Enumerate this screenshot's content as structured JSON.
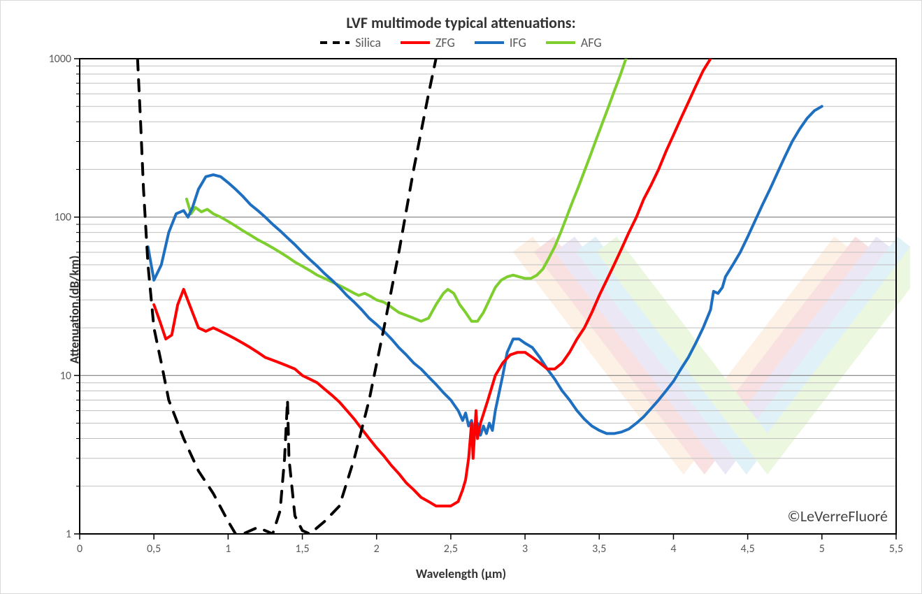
{
  "chart": {
    "type": "line-log",
    "title": "LVF multimode typical attenuations:",
    "title_fontsize": 22,
    "xlabel": "Wavelength (µm)",
    "ylabel": "Attenuation (dB/km)",
    "axis_label_fontsize": 18,
    "tick_fontsize": 16,
    "frame_border_color": "#d9d9d9",
    "background_color": "#ffffff",
    "plot_border_color": "#000000",
    "grid_minor_color": "#bfbfbf",
    "grid_major_color": "#7f7f7f",
    "x": {
      "min": 0,
      "max": 5.5,
      "step": 0.5,
      "decimal_sep": ",",
      "ticks": [
        0,
        0.5,
        1,
        1.5,
        2,
        2.5,
        3,
        3.5,
        4,
        4.5,
        5,
        5.5
      ]
    },
    "y": {
      "type": "log",
      "min": 1,
      "max": 1000,
      "decades": [
        1,
        10,
        100,
        1000
      ]
    },
    "legend": [
      {
        "label": "Silica",
        "color": "#000000",
        "dash": true,
        "width": 4
      },
      {
        "label": "ZFG",
        "color": "#ff0000",
        "dash": false,
        "width": 4
      },
      {
        "label": "IFG",
        "color": "#1f6fc1",
        "dash": false,
        "width": 4
      },
      {
        "label": "AFG",
        "color": "#7fce2f",
        "dash": false,
        "width": 4
      }
    ],
    "series": {
      "Silica": {
        "color": "#000000",
        "dash": true,
        "width": 4,
        "points": [
          [
            0.39,
            1000
          ],
          [
            0.41,
            400
          ],
          [
            0.43,
            150
          ],
          [
            0.46,
            50
          ],
          [
            0.5,
            20
          ],
          [
            0.55,
            12
          ],
          [
            0.6,
            7
          ],
          [
            0.7,
            4
          ],
          [
            0.8,
            2.5
          ],
          [
            0.9,
            1.8
          ],
          [
            1.0,
            1.2
          ],
          [
            1.05,
            1.0
          ],
          [
            1.1,
            1.0
          ],
          [
            1.2,
            1.1
          ],
          [
            1.3,
            1.0
          ],
          [
            1.35,
            1.4
          ],
          [
            1.38,
            3
          ],
          [
            1.4,
            7
          ],
          [
            1.41,
            3
          ],
          [
            1.45,
            1.3
          ],
          [
            1.5,
            1.05
          ],
          [
            1.55,
            1.0
          ],
          [
            1.65,
            1.2
          ],
          [
            1.75,
            1.5
          ],
          [
            1.85,
            3
          ],
          [
            1.95,
            7
          ],
          [
            2.05,
            20
          ],
          [
            2.15,
            60
          ],
          [
            2.25,
            200
          ],
          [
            2.35,
            600
          ],
          [
            2.4,
            1000
          ]
        ]
      },
      "ZFG": {
        "color": "#ff0000",
        "dash": false,
        "width": 4,
        "points": [
          [
            0.5,
            28
          ],
          [
            0.54,
            22
          ],
          [
            0.58,
            17
          ],
          [
            0.62,
            18
          ],
          [
            0.66,
            28
          ],
          [
            0.7,
            35
          ],
          [
            0.74,
            28
          ],
          [
            0.8,
            20
          ],
          [
            0.85,
            19
          ],
          [
            0.9,
            20
          ],
          [
            0.95,
            19
          ],
          [
            1.0,
            18
          ],
          [
            1.05,
            17
          ],
          [
            1.1,
            16
          ],
          [
            1.15,
            15
          ],
          [
            1.2,
            14
          ],
          [
            1.25,
            13
          ],
          [
            1.3,
            12.5
          ],
          [
            1.35,
            12
          ],
          [
            1.4,
            11.5
          ],
          [
            1.45,
            11
          ],
          [
            1.5,
            10
          ],
          [
            1.55,
            9.5
          ],
          [
            1.6,
            9
          ],
          [
            1.65,
            8.2
          ],
          [
            1.7,
            7.5
          ],
          [
            1.75,
            6.8
          ],
          [
            1.8,
            6.0
          ],
          [
            1.85,
            5.3
          ],
          [
            1.9,
            4.6
          ],
          [
            1.95,
            4.0
          ],
          [
            2.0,
            3.5
          ],
          [
            2.05,
            3.1
          ],
          [
            2.1,
            2.7
          ],
          [
            2.15,
            2.4
          ],
          [
            2.2,
            2.1
          ],
          [
            2.25,
            1.9
          ],
          [
            2.3,
            1.7
          ],
          [
            2.35,
            1.6
          ],
          [
            2.4,
            1.5
          ],
          [
            2.45,
            1.5
          ],
          [
            2.5,
            1.5
          ],
          [
            2.55,
            1.6
          ],
          [
            2.58,
            1.9
          ],
          [
            2.6,
            2.2
          ],
          [
            2.62,
            3.0
          ],
          [
            2.64,
            5.0
          ],
          [
            2.65,
            3.0
          ],
          [
            2.67,
            6.0
          ],
          [
            2.68,
            4.0
          ],
          [
            2.7,
            5.0
          ],
          [
            2.75,
            7.0
          ],
          [
            2.8,
            10
          ],
          [
            2.85,
            12
          ],
          [
            2.9,
            13.5
          ],
          [
            2.95,
            14
          ],
          [
            3.0,
            14
          ],
          [
            3.05,
            13
          ],
          [
            3.1,
            12
          ],
          [
            3.15,
            11
          ],
          [
            3.2,
            11
          ],
          [
            3.25,
            12
          ],
          [
            3.3,
            14
          ],
          [
            3.35,
            17
          ],
          [
            3.4,
            20
          ],
          [
            3.45,
            25
          ],
          [
            3.5,
            32
          ],
          [
            3.55,
            40
          ],
          [
            3.6,
            50
          ],
          [
            3.65,
            63
          ],
          [
            3.7,
            80
          ],
          [
            3.75,
            100
          ],
          [
            3.8,
            130
          ],
          [
            3.85,
            160
          ],
          [
            3.9,
            200
          ],
          [
            3.95,
            260
          ],
          [
            4.0,
            330
          ],
          [
            4.05,
            420
          ],
          [
            4.1,
            530
          ],
          [
            4.15,
            670
          ],
          [
            4.2,
            840
          ],
          [
            4.25,
            1000
          ]
        ]
      },
      "IFG": {
        "color": "#1f6fc1",
        "dash": false,
        "width": 4,
        "points": [
          [
            0.46,
            65
          ],
          [
            0.5,
            40
          ],
          [
            0.55,
            50
          ],
          [
            0.6,
            80
          ],
          [
            0.65,
            105
          ],
          [
            0.7,
            110
          ],
          [
            0.73,
            100
          ],
          [
            0.76,
            115
          ],
          [
            0.8,
            150
          ],
          [
            0.85,
            180
          ],
          [
            0.9,
            185
          ],
          [
            0.95,
            180
          ],
          [
            1.0,
            165
          ],
          [
            1.05,
            150
          ],
          [
            1.1,
            135
          ],
          [
            1.15,
            120
          ],
          [
            1.2,
            110
          ],
          [
            1.25,
            100
          ],
          [
            1.3,
            90
          ],
          [
            1.35,
            82
          ],
          [
            1.4,
            74
          ],
          [
            1.45,
            67
          ],
          [
            1.5,
            60
          ],
          [
            1.55,
            54
          ],
          [
            1.6,
            49
          ],
          [
            1.65,
            44
          ],
          [
            1.7,
            40
          ],
          [
            1.75,
            36
          ],
          [
            1.8,
            32
          ],
          [
            1.85,
            29
          ],
          [
            1.9,
            26
          ],
          [
            1.95,
            23
          ],
          [
            2.0,
            21
          ],
          [
            2.05,
            19
          ],
          [
            2.1,
            17
          ],
          [
            2.15,
            15
          ],
          [
            2.2,
            13.5
          ],
          [
            2.25,
            12
          ],
          [
            2.3,
            11
          ],
          [
            2.35,
            9.8
          ],
          [
            2.4,
            8.8
          ],
          [
            2.45,
            7.8
          ],
          [
            2.5,
            7.0
          ],
          [
            2.55,
            6.0
          ],
          [
            2.58,
            5.2
          ],
          [
            2.6,
            5.8
          ],
          [
            2.62,
            4.8
          ],
          [
            2.64,
            5.2
          ],
          [
            2.66,
            4.3
          ],
          [
            2.68,
            5.0
          ],
          [
            2.7,
            4.2
          ],
          [
            2.72,
            4.8
          ],
          [
            2.74,
            4.3
          ],
          [
            2.76,
            5.0
          ],
          [
            2.78,
            4.5
          ],
          [
            2.8,
            6.0
          ],
          [
            2.85,
            10
          ],
          [
            2.88,
            14
          ],
          [
            2.92,
            17
          ],
          [
            2.96,
            17
          ],
          [
            3.0,
            16
          ],
          [
            3.05,
            15
          ],
          [
            3.1,
            13
          ],
          [
            3.15,
            11
          ],
          [
            3.2,
            9.5
          ],
          [
            3.25,
            8.0
          ],
          [
            3.3,
            7.0
          ],
          [
            3.35,
            6.0
          ],
          [
            3.4,
            5.3
          ],
          [
            3.45,
            4.8
          ],
          [
            3.5,
            4.5
          ],
          [
            3.55,
            4.3
          ],
          [
            3.6,
            4.3
          ],
          [
            3.65,
            4.4
          ],
          [
            3.7,
            4.6
          ],
          [
            3.75,
            5.0
          ],
          [
            3.8,
            5.5
          ],
          [
            3.85,
            6.2
          ],
          [
            3.9,
            7.0
          ],
          [
            3.95,
            8.0
          ],
          [
            4.0,
            9.2
          ],
          [
            4.05,
            11
          ],
          [
            4.1,
            13
          ],
          [
            4.15,
            16
          ],
          [
            4.2,
            20
          ],
          [
            4.25,
            26
          ],
          [
            4.27,
            34
          ],
          [
            4.3,
            33
          ],
          [
            4.33,
            36
          ],
          [
            4.35,
            42
          ],
          [
            4.4,
            50
          ],
          [
            4.45,
            60
          ],
          [
            4.5,
            75
          ],
          [
            4.55,
            95
          ],
          [
            4.6,
            120
          ],
          [
            4.65,
            150
          ],
          [
            4.7,
            190
          ],
          [
            4.75,
            240
          ],
          [
            4.8,
            300
          ],
          [
            4.85,
            360
          ],
          [
            4.9,
            420
          ],
          [
            4.95,
            470
          ],
          [
            5.0,
            500
          ]
        ]
      },
      "AFG": {
        "color": "#7fce2f",
        "dash": false,
        "width": 4,
        "points": [
          [
            0.72,
            130
          ],
          [
            0.75,
            105
          ],
          [
            0.78,
            115
          ],
          [
            0.82,
            108
          ],
          [
            0.86,
            112
          ],
          [
            0.9,
            105
          ],
          [
            0.95,
            100
          ],
          [
            1.0,
            94
          ],
          [
            1.05,
            88
          ],
          [
            1.1,
            82
          ],
          [
            1.15,
            77
          ],
          [
            1.2,
            72
          ],
          [
            1.25,
            68
          ],
          [
            1.3,
            64
          ],
          [
            1.35,
            60
          ],
          [
            1.4,
            56
          ],
          [
            1.45,
            52
          ],
          [
            1.5,
            49
          ],
          [
            1.55,
            46
          ],
          [
            1.6,
            43
          ],
          [
            1.65,
            41
          ],
          [
            1.7,
            39
          ],
          [
            1.75,
            37
          ],
          [
            1.8,
            35
          ],
          [
            1.85,
            33
          ],
          [
            1.88,
            32
          ],
          [
            1.92,
            33
          ],
          [
            1.95,
            32
          ],
          [
            2.0,
            30
          ],
          [
            2.05,
            29
          ],
          [
            2.1,
            27
          ],
          [
            2.15,
            25
          ],
          [
            2.2,
            24
          ],
          [
            2.25,
            23
          ],
          [
            2.3,
            22
          ],
          [
            2.35,
            23
          ],
          [
            2.4,
            28
          ],
          [
            2.45,
            33
          ],
          [
            2.48,
            35
          ],
          [
            2.52,
            33
          ],
          [
            2.56,
            28
          ],
          [
            2.6,
            25
          ],
          [
            2.64,
            22
          ],
          [
            2.68,
            22
          ],
          [
            2.72,
            25
          ],
          [
            2.76,
            30
          ],
          [
            2.8,
            36
          ],
          [
            2.84,
            40
          ],
          [
            2.88,
            42
          ],
          [
            2.92,
            43
          ],
          [
            2.96,
            42
          ],
          [
            3.0,
            41
          ],
          [
            3.04,
            41
          ],
          [
            3.08,
            43
          ],
          [
            3.12,
            47
          ],
          [
            3.16,
            55
          ],
          [
            3.2,
            65
          ],
          [
            3.24,
            80
          ],
          [
            3.28,
            100
          ],
          [
            3.32,
            125
          ],
          [
            3.36,
            155
          ],
          [
            3.4,
            195
          ],
          [
            3.44,
            245
          ],
          [
            3.48,
            310
          ],
          [
            3.52,
            390
          ],
          [
            3.56,
            490
          ],
          [
            3.6,
            620
          ],
          [
            3.64,
            780
          ],
          [
            3.68,
            1000
          ]
        ]
      }
    },
    "watermark": "©LeVerreFluoré"
  }
}
